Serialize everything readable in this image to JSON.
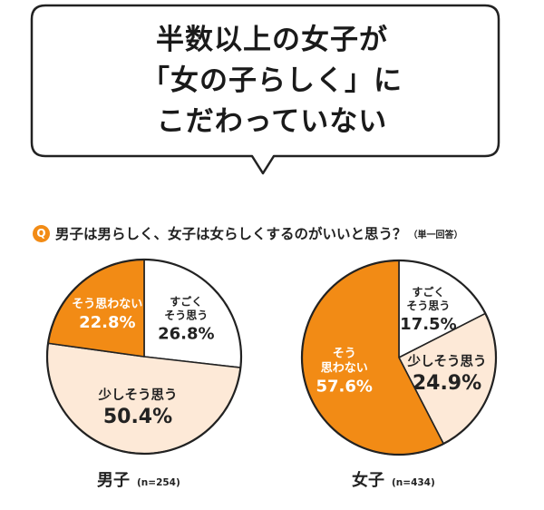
{
  "headline": {
    "lines": [
      "半数以上の女子が",
      "「女の子らしく」に",
      "こだわっていない"
    ]
  },
  "question": {
    "badge": "Q",
    "text": "男子は男らしく、女子は女らしくするのがいいと思う？",
    "note": "（単一回答）"
  },
  "colors": {
    "strong_agree": "#ffffff",
    "agree": "#fde9d7",
    "disagree": "#f28b15",
    "outline": "#222222",
    "text_on_dark": "#ffffff",
    "text_on_light": "#222222"
  },
  "chart_data": [
    {
      "type": "pie",
      "caption": "男子",
      "n_label": "(n=254)",
      "slices": [
        {
          "label": "すごく\nそう思う",
          "value": 26.8,
          "value_label": "26.8%"
        },
        {
          "label": "少しそう思う",
          "value": 50.4,
          "value_label": "50.4%"
        },
        {
          "label": "そう思わない",
          "value": 22.8,
          "value_label": "22.8%"
        }
      ]
    },
    {
      "type": "pie",
      "caption": "女子",
      "n_label": "(n=434)",
      "slices": [
        {
          "label": "すごく\nそう思う",
          "value": 17.5,
          "value_label": "17.5%"
        },
        {
          "label": "少しそう思う",
          "value": 24.9,
          "value_label": "24.9%"
        },
        {
          "label": "そう\n思わない",
          "value": 57.6,
          "value_label": "57.6%"
        }
      ]
    }
  ]
}
